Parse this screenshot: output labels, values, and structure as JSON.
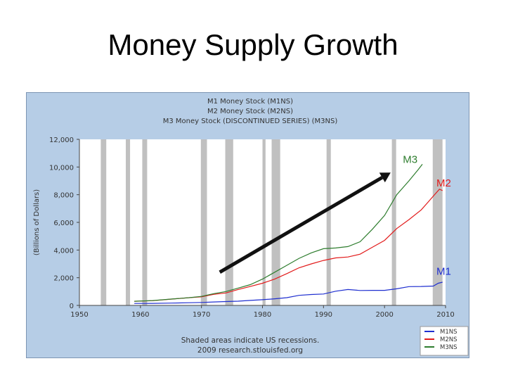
{
  "slide": {
    "title": "Money Supply Growth"
  },
  "chart_data": {
    "type": "line",
    "title_lines": [
      "M1 Money Stock (M1NS)",
      "M2 Money Stock (M2NS)",
      "M3 Money Stock (DISCONTINUED SERIES) (M3NS)"
    ],
    "ylabel": "(Billions of Dollars)",
    "xlabel": "",
    "xlim": [
      1950,
      2010
    ],
    "ylim": [
      0,
      12000
    ],
    "x_ticks": [
      "1950",
      "1960",
      "1970",
      "1980",
      "1990",
      "2000",
      "2010"
    ],
    "y_ticks": [
      "0",
      "2,000",
      "4,000",
      "6,000",
      "8,000",
      "10,000",
      "12,000"
    ],
    "grid": false,
    "recessions": [
      [
        1953.5,
        1954.4
      ],
      [
        1957.6,
        1958.3
      ],
      [
        1960.3,
        1961.1
      ],
      [
        1969.9,
        1970.9
      ],
      [
        1973.9,
        1975.2
      ],
      [
        1980.0,
        1980.5
      ],
      [
        1981.5,
        1982.9
      ],
      [
        1990.5,
        1991.2
      ],
      [
        2001.2,
        2001.9
      ],
      [
        2007.9,
        2009.5
      ]
    ],
    "note_lines": [
      "Shaded areas indicate US recessions.",
      "2009 research.stlouisfed.org"
    ],
    "legend_position": "bottom-right",
    "series": [
      {
        "name": "M1NS",
        "color": "#1f2fd0",
        "points": [
          [
            1959,
            140
          ],
          [
            1962,
            148
          ],
          [
            1965,
            168
          ],
          [
            1968,
            195
          ],
          [
            1970,
            215
          ],
          [
            1972,
            250
          ],
          [
            1974,
            280
          ],
          [
            1976,
            305
          ],
          [
            1978,
            360
          ],
          [
            1980,
            410
          ],
          [
            1982,
            480
          ],
          [
            1984,
            560
          ],
          [
            1986,
            725
          ],
          [
            1988,
            790
          ],
          [
            1990,
            825
          ],
          [
            1992,
            1025
          ],
          [
            1994,
            1150
          ],
          [
            1996,
            1080
          ],
          [
            1998,
            1090
          ],
          [
            2000,
            1090
          ],
          [
            2002,
            1200
          ],
          [
            2004,
            1360
          ],
          [
            2006,
            1370
          ],
          [
            2008,
            1400
          ],
          [
            2008.8,
            1600
          ],
          [
            2009.5,
            1680
          ]
        ]
      },
      {
        "name": "M2NS",
        "color": "#e21b1b",
        "points": [
          [
            1959,
            300
          ],
          [
            1962,
            340
          ],
          [
            1965,
            450
          ],
          [
            1968,
            560
          ],
          [
            1970,
            620
          ],
          [
            1972,
            800
          ],
          [
            1974,
            900
          ],
          [
            1976,
            1150
          ],
          [
            1978,
            1370
          ],
          [
            1980,
            1600
          ],
          [
            1982,
            1900
          ],
          [
            1984,
            2300
          ],
          [
            1986,
            2720
          ],
          [
            1988,
            3000
          ],
          [
            1990,
            3250
          ],
          [
            1992,
            3430
          ],
          [
            1994,
            3500
          ],
          [
            1996,
            3700
          ],
          [
            1998,
            4200
          ],
          [
            2000,
            4700
          ],
          [
            2002,
            5550
          ],
          [
            2004,
            6200
          ],
          [
            2006,
            6900
          ],
          [
            2007,
            7400
          ],
          [
            2008,
            7900
          ],
          [
            2009,
            8400
          ],
          [
            2009.5,
            8300
          ]
        ]
      },
      {
        "name": "M3NS",
        "color": "#2e7d2e",
        "points": [
          [
            1959,
            300
          ],
          [
            1962,
            350
          ],
          [
            1965,
            460
          ],
          [
            1968,
            560
          ],
          [
            1970,
            650
          ],
          [
            1972,
            850
          ],
          [
            1974,
            1000
          ],
          [
            1976,
            1250
          ],
          [
            1978,
            1500
          ],
          [
            1980,
            1900
          ],
          [
            1982,
            2400
          ],
          [
            1984,
            2900
          ],
          [
            1986,
            3400
          ],
          [
            1988,
            3800
          ],
          [
            1990,
            4100
          ],
          [
            1992,
            4150
          ],
          [
            1994,
            4250
          ],
          [
            1996,
            4600
          ],
          [
            1998,
            5500
          ],
          [
            2000,
            6500
          ],
          [
            2002,
            8000
          ],
          [
            2004,
            9000
          ],
          [
            2005.5,
            9800
          ],
          [
            2006.2,
            10200
          ]
        ]
      }
    ],
    "annotations": [
      {
        "text": "M3",
        "color": "#2e7d2e",
        "x": 2003,
        "y": 10300
      },
      {
        "text": "M2",
        "color": "#e21b1b",
        "x": 2008.5,
        "y": 8600
      },
      {
        "text": "M1",
        "color": "#1f2fd0",
        "x": 2008.5,
        "y": 2200
      }
    ],
    "arrow": {
      "from": [
        1973,
        2400
      ],
      "to": [
        2001,
        9600
      ],
      "color": "#111111"
    }
  }
}
